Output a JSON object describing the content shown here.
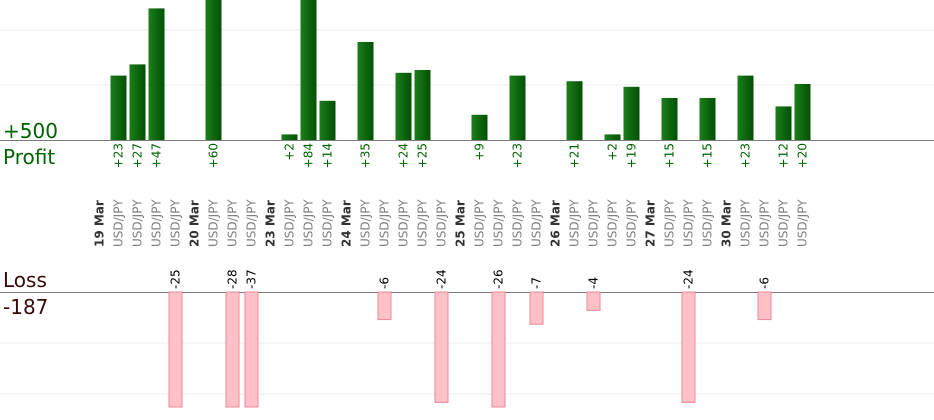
{
  "chart_data": {
    "type": "bar",
    "profit_label": "Profit",
    "profit_total": "+500",
    "loss_label": "Loss",
    "loss_total": "-187",
    "colors": {
      "profit_bar": "#0b6d0b",
      "profit_text": "#006400",
      "loss_bar": "#ffc0c8",
      "loss_stroke": "#e88a96",
      "loss_text": "#000000",
      "loss_label_color": "#3a0a0a",
      "date_text": "#333333",
      "pair_text": "#808080"
    },
    "slots": [
      {
        "date": "19 Mar"
      },
      {
        "pair": "USD/JPY",
        "profit": 23,
        "profit_label": "+23"
      },
      {
        "pair": "USD/JPY",
        "profit": 27,
        "profit_label": "+27"
      },
      {
        "pair": "USD/JPY",
        "profit": 47,
        "profit_label": "+47"
      },
      {
        "pair": "USD/JPY",
        "loss": -25,
        "loss_label": "-25"
      },
      {
        "date": "20 Mar"
      },
      {
        "pair": "USD/JPY",
        "profit": 60,
        "profit_label": "+60"
      },
      {
        "pair": "USD/JPY",
        "loss": -28,
        "loss_label": "-28"
      },
      {
        "pair": "USD/JPY",
        "loss": -37,
        "loss_label": "-37"
      },
      {
        "date": "23 Mar"
      },
      {
        "pair": "USD/JPY",
        "profit": 2,
        "profit_label": "+2"
      },
      {
        "pair": "USD/JPY",
        "profit": 84,
        "profit_label": "+84"
      },
      {
        "pair": "USD/JPY",
        "profit": 14,
        "profit_label": "+14"
      },
      {
        "date": "24 Mar"
      },
      {
        "pair": "USD/JPY",
        "profit": 35,
        "profit_label": "+35"
      },
      {
        "pair": "USD/JPY",
        "loss": -6,
        "loss_label": "-6"
      },
      {
        "pair": "USD/JPY",
        "profit": 24,
        "profit_label": "+24"
      },
      {
        "pair": "USD/JPY",
        "profit": 25,
        "profit_label": "+25"
      },
      {
        "pair": "USD/JPY",
        "loss": -24,
        "loss_label": "-24"
      },
      {
        "date": "25 Mar"
      },
      {
        "pair": "USD/JPY",
        "profit": 9,
        "profit_label": "+9"
      },
      {
        "pair": "USD/JPY",
        "loss": -26,
        "loss_label": "-26"
      },
      {
        "pair": "USD/JPY",
        "profit": 23,
        "profit_label": "+23"
      },
      {
        "pair": "USD/JPY",
        "loss": -7,
        "loss_label": "-7"
      },
      {
        "date": "26 Mar"
      },
      {
        "pair": "USD/JPY",
        "profit": 21,
        "profit_label": "+21"
      },
      {
        "pair": "USD/JPY",
        "loss": -4,
        "loss_label": "-4"
      },
      {
        "pair": "USD/JPY",
        "profit": 2,
        "profit_label": "+2"
      },
      {
        "pair": "USD/JPY",
        "profit": 19,
        "profit_label": "+19"
      },
      {
        "date": "27 Mar"
      },
      {
        "pair": "USD/JPY",
        "profit": 15,
        "profit_label": "+15"
      },
      {
        "pair": "USD/JPY",
        "loss": -24,
        "loss_label": "-24"
      },
      {
        "pair": "USD/JPY",
        "profit": 15,
        "profit_label": "+15"
      },
      {
        "date": "30 Mar"
      },
      {
        "pair": "USD/JPY",
        "profit": 23,
        "profit_label": "+23"
      },
      {
        "pair": "USD/JPY",
        "loss": -6,
        "loss_label": "-6"
      },
      {
        "pair": "USD/JPY",
        "profit": 12,
        "profit_label": "+12"
      },
      {
        "pair": "USD/JPY",
        "profit": 20,
        "profit_label": "+20"
      }
    ]
  }
}
